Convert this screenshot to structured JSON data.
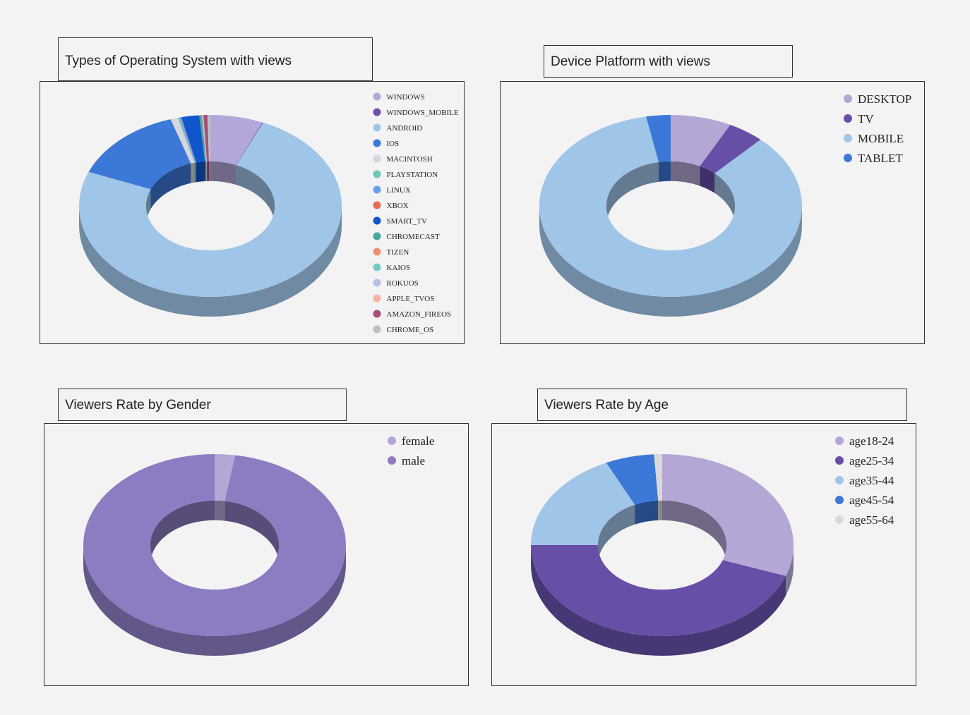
{
  "titles": {
    "os": "Types of Operating System with views",
    "device": "Device Platform with views",
    "gender": "Viewers Rate by Gender",
    "age": "Viewers Rate by Age"
  },
  "chart_data": [
    {
      "id": "os",
      "type": "pie",
      "donut": true,
      "title": "Types of Operating System with views",
      "legend_position": "top-right",
      "categories": [
        "WINDOWS",
        "WINDOWS_MOBILE",
        "ANDROID",
        "IOS",
        "MACINTOSH",
        "PLAYSTATION",
        "LINUX",
        "XBOX",
        "SMART_TV",
        "CHROMECAST",
        "TIZEN",
        "KAIOS",
        "ROKUOS",
        "APPLE_TVOS",
        "AMAZON_FIREOS",
        "CHROME_OS"
      ],
      "values": [
        6.5,
        0.1,
        74.5,
        14.0,
        0.9,
        0.2,
        0.2,
        0.05,
        2.2,
        0.3,
        0.05,
        0.05,
        0.05,
        0.05,
        0.5,
        0.35
      ],
      "colors": [
        "#b3a7d9",
        "#6a4fa8",
        "#9fc5e8",
        "#3c78d8",
        "#d9d5de",
        "#6dc6b8",
        "#6d9eeb",
        "#e46a5a",
        "#1155cc",
        "#45a89a",
        "#f0907a",
        "#76c8c8",
        "#b4c0e8",
        "#f4b4a4",
        "#a64d79",
        "#b7c1c4"
      ]
    },
    {
      "id": "device",
      "type": "pie",
      "donut": true,
      "title": "Device Platform with views",
      "legend_position": "top-right",
      "categories": [
        "DESKTOP",
        "TV",
        "MOBILE",
        "TABLET"
      ],
      "values": [
        7.5,
        4.5,
        85.0,
        3.0
      ],
      "colors": [
        "#b4a7d6",
        "#674ea7",
        "#9fc5e8",
        "#3c78d8"
      ]
    },
    {
      "id": "gender",
      "type": "pie",
      "donut": true,
      "title": "Viewers Rate by Gender",
      "legend_position": "top-right",
      "categories": [
        "female",
        "male"
      ],
      "values": [
        2.5,
        97.5
      ],
      "colors": [
        "#b4a7d6",
        "#8e7cc3"
      ]
    },
    {
      "id": "age",
      "type": "pie",
      "donut": true,
      "title": "Viewers Rate by Age",
      "legend_position": "top-right",
      "categories": [
        "age18-24",
        "age25-34",
        "age35-44",
        "age45-54",
        "age55-64"
      ],
      "values": [
        30.5,
        44.5,
        18.0,
        6.0,
        1.0
      ],
      "colors": [
        "#b4a7d6",
        "#674ea7",
        "#9fc5e8",
        "#3c78d8",
        "#d9d9d9"
      ]
    }
  ]
}
